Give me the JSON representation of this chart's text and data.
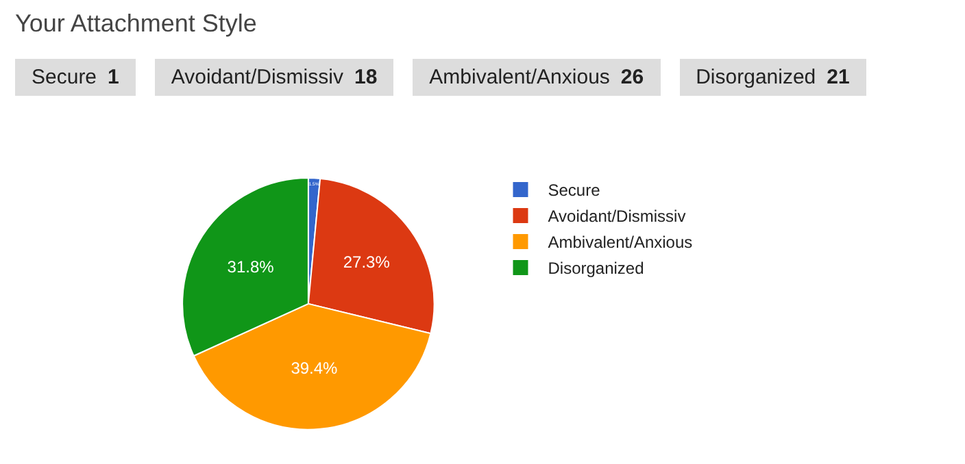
{
  "chart_data": {
    "type": "pie",
    "title": "Your Attachment Style",
    "categories": [
      "Secure",
      "Avoidant/Dismissiv",
      "Ambivalent/Anxious",
      "Disorganized"
    ],
    "values": [
      1.5,
      27.3,
      39.4,
      31.8
    ],
    "annotations": [
      "Secure 1",
      "Avoidant/Dismissiv 18",
      "Ambivalent/Anxious 26",
      "Disorganized 21"
    ],
    "colors": [
      "#3366cc",
      "#dc3912",
      "#ff9900",
      "#109618"
    ],
    "value_labels": [
      "1.5%",
      "27.3%",
      "39.4%",
      "31.8%"
    ],
    "legend": "right"
  }
}
